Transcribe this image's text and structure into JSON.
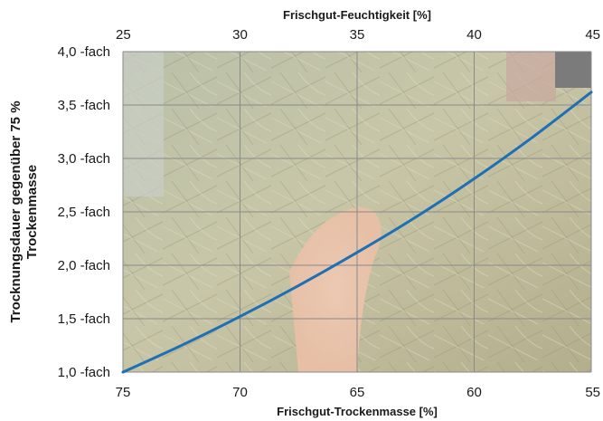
{
  "chart_data": {
    "type": "line",
    "x_bottom_label": "Frischgut-Trockenmasse [%]",
    "x_top_label": "Frischgut-Feuchtigkeit [%]",
    "y_label_lines": [
      "Trocknungsdauer gegenüber 75 %",
      "Trockenmasse"
    ],
    "x_bottom_ticks": [
      "75",
      "70",
      "65",
      "60",
      "55"
    ],
    "x_top_ticks": [
      "25",
      "30",
      "35",
      "40",
      "45"
    ],
    "y_ticks": [
      "1,0 -fach",
      "1,5 -fach",
      "2,0 -fach",
      "2,5 -fach",
      "3,0 -fach",
      "3,5 -fach",
      "4,0 -fach"
    ],
    "xlim": [
      75,
      55
    ],
    "ylim": [
      1.0,
      4.0
    ],
    "grid": true,
    "series": [
      {
        "color": "#1f6fb5",
        "x": [
          75,
          72.5,
          70,
          67.5,
          65,
          62.5,
          60,
          57.5,
          55
        ],
        "y": [
          1.0,
          1.25,
          1.52,
          1.81,
          2.12,
          2.45,
          2.81,
          3.2,
          3.62
        ]
      }
    ]
  }
}
